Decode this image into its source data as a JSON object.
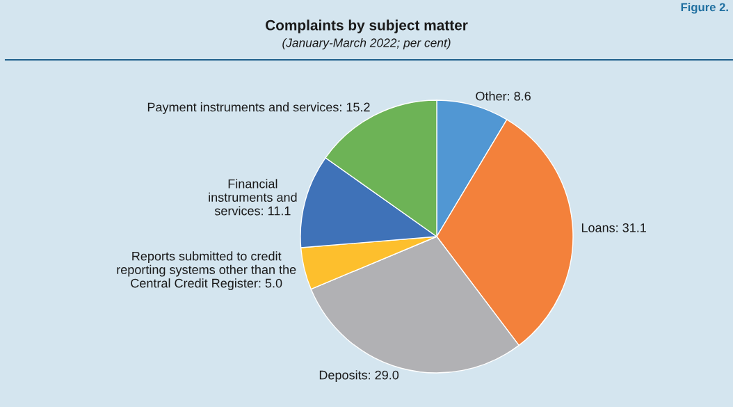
{
  "chart_data": {
    "type": "pie",
    "title": "Complaints by subject matter",
    "subtitle": "(January-March 2022; per cent)",
    "categories": [
      "Other: 8.6",
      "Loans: 31.1",
      "Deposits: 29.0",
      "Reports submitted to credit\nreporting systems other than the\nCentral Credit Register: 5.0",
      "Financial\ninstruments and\nservices: 11.1",
      "Payment instruments and services: 15.2"
    ],
    "values": [
      8.6,
      31.1,
      29.0,
      5.0,
      11.1,
      15.2
    ],
    "colors": [
      "#5197d3",
      "#f3813b",
      "#b1b1b4",
      "#fdbf2d",
      "#3f72b8",
      "#6db356"
    ],
    "annotations": [
      "Figure 2."
    ]
  }
}
